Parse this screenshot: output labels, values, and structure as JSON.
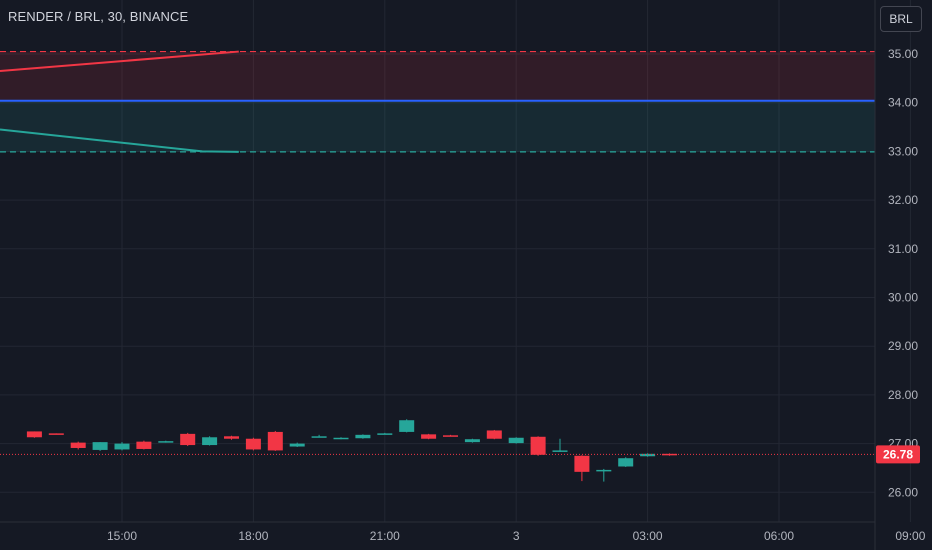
{
  "header": {
    "title": "RENDER / BRL, 30, BINANCE",
    "currency_button": "BRL"
  },
  "colors": {
    "background": "#151924",
    "grid": "#232733",
    "text": "#b2b5be",
    "up": "#26a69a",
    "down": "#f23645",
    "blue_line": "#2962ff"
  },
  "price_axis": {
    "ticks": [
      "35.00",
      "34.00",
      "33.00",
      "32.00",
      "31.00",
      "30.00",
      "29.00",
      "28.00",
      "27.00",
      "26.00"
    ]
  },
  "time_axis": {
    "ticks": [
      "15:00",
      "18:00",
      "21:00",
      "3",
      "03:00",
      "06:00",
      "09:00"
    ]
  },
  "last_price": {
    "label": "26.78",
    "value": 26.78
  },
  "levels": {
    "upper": 35.05,
    "middle": 34.04,
    "lower": 32.99
  },
  "chart_data": {
    "type": "candlestick",
    "title": "RENDER / BRL, 30, BINANCE",
    "ylim": [
      25.75,
      35.6
    ],
    "bands": [
      {
        "name": "upper",
        "from": 34.04,
        "to": 35.05,
        "color": "#f23645"
      },
      {
        "name": "lower",
        "from": 32.99,
        "to": 34.04,
        "color": "#26a69a"
      }
    ],
    "trend_lines": [
      {
        "color": "#f23645",
        "points": [
          [
            "13:00",
            34.65
          ],
          [
            "17:40",
            35.05
          ]
        ]
      },
      {
        "color": "#26a69a",
        "points": [
          [
            "13:00",
            33.45
          ],
          [
            "16:50",
            33.0
          ],
          [
            "17:40",
            32.99
          ]
        ]
      }
    ],
    "candles": [
      {
        "t": "13:00",
        "o": 27.25,
        "h": 27.25,
        "l": 27.12,
        "c": 27.13
      },
      {
        "t": "13:30",
        "o": 27.21,
        "h": 27.21,
        "l": 27.19,
        "c": 27.2
      },
      {
        "t": "14:00",
        "o": 27.02,
        "h": 27.04,
        "l": 26.88,
        "c": 26.91
      },
      {
        "t": "14:30",
        "o": 26.87,
        "h": 27.03,
        "l": 26.85,
        "c": 27.03
      },
      {
        "t": "15:00",
        "o": 26.88,
        "h": 27.03,
        "l": 26.86,
        "c": 27.0
      },
      {
        "t": "15:30",
        "o": 27.04,
        "h": 27.06,
        "l": 26.88,
        "c": 26.89
      },
      {
        "t": "16:00",
        "o": 27.04,
        "h": 27.06,
        "l": 27.02,
        "c": 27.05
      },
      {
        "t": "16:30",
        "o": 27.2,
        "h": 27.22,
        "l": 26.95,
        "c": 26.97
      },
      {
        "t": "17:00",
        "o": 26.97,
        "h": 27.15,
        "l": 26.96,
        "c": 27.13
      },
      {
        "t": "17:30",
        "o": 27.15,
        "h": 27.16,
        "l": 27.08,
        "c": 27.1
      },
      {
        "t": "18:00",
        "o": 27.1,
        "h": 27.12,
        "l": 26.86,
        "c": 26.88
      },
      {
        "t": "18:30",
        "o": 27.24,
        "h": 27.26,
        "l": 26.85,
        "c": 26.86
      },
      {
        "t": "19:00",
        "o": 26.94,
        "h": 27.02,
        "l": 26.93,
        "c": 27.0
      },
      {
        "t": "19:30",
        "o": 27.14,
        "h": 27.18,
        "l": 27.13,
        "c": 27.15
      },
      {
        "t": "20:00",
        "o": 27.11,
        "h": 27.13,
        "l": 27.09,
        "c": 27.12
      },
      {
        "t": "20:30",
        "o": 27.11,
        "h": 27.19,
        "l": 27.1,
        "c": 27.18
      },
      {
        "t": "21:00",
        "o": 27.2,
        "h": 27.22,
        "l": 27.19,
        "c": 27.21
      },
      {
        "t": "21:30",
        "o": 27.24,
        "h": 27.5,
        "l": 27.23,
        "c": 27.48
      },
      {
        "t": "22:00",
        "o": 27.19,
        "h": 27.2,
        "l": 27.09,
        "c": 27.1
      },
      {
        "t": "22:30",
        "o": 27.17,
        "h": 27.18,
        "l": 27.15,
        "c": 27.16
      },
      {
        "t": "23:00",
        "o": 27.03,
        "h": 27.1,
        "l": 27.02,
        "c": 27.09
      },
      {
        "t": "23:30",
        "o": 27.27,
        "h": 27.28,
        "l": 27.09,
        "c": 27.1
      },
      {
        "t": "00:00",
        "o": 27.01,
        "h": 27.13,
        "l": 27.0,
        "c": 27.12
      },
      {
        "t": "00:30",
        "o": 27.14,
        "h": 27.15,
        "l": 26.75,
        "c": 26.77
      },
      {
        "t": "01:00",
        "o": 26.85,
        "h": 27.1,
        "l": 26.83,
        "c": 26.86
      },
      {
        "t": "01:30",
        "o": 26.75,
        "h": 26.76,
        "l": 26.23,
        "c": 26.42
      },
      {
        "t": "02:00",
        "o": 26.45,
        "h": 26.48,
        "l": 26.22,
        "c": 26.46
      },
      {
        "t": "02:30",
        "o": 26.53,
        "h": 26.72,
        "l": 26.52,
        "c": 26.7
      },
      {
        "t": "03:00",
        "o": 26.74,
        "h": 26.8,
        "l": 26.73,
        "c": 26.79
      },
      {
        "t": "03:30",
        "o": 26.79,
        "h": 26.8,
        "l": 26.75,
        "c": 26.78
      }
    ]
  }
}
